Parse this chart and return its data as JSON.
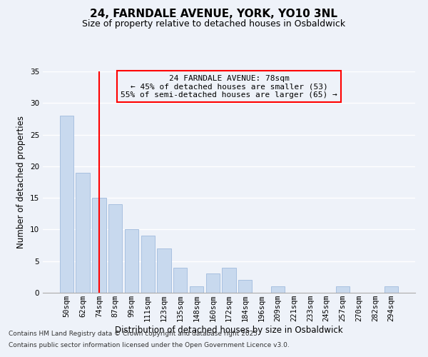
{
  "title": "24, FARNDALE AVENUE, YORK, YO10 3NL",
  "subtitle": "Size of property relative to detached houses in Osbaldwick",
  "xlabel": "Distribution of detached houses by size in Osbaldwick",
  "ylabel": "Number of detached properties",
  "bar_color": "#c8d9ee",
  "bar_edge_color": "#a8c0e0",
  "categories": [
    "50sqm",
    "62sqm",
    "74sqm",
    "87sqm",
    "99sqm",
    "111sqm",
    "123sqm",
    "135sqm",
    "148sqm",
    "160sqm",
    "172sqm",
    "184sqm",
    "196sqm",
    "209sqm",
    "221sqm",
    "233sqm",
    "245sqm",
    "257sqm",
    "270sqm",
    "282sqm",
    "294sqm"
  ],
  "values": [
    28,
    19,
    15,
    14,
    10,
    9,
    7,
    4,
    1,
    3,
    4,
    2,
    0,
    1,
    0,
    0,
    0,
    1,
    0,
    0,
    1
  ],
  "ylim": [
    0,
    35
  ],
  "yticks": [
    0,
    5,
    10,
    15,
    20,
    25,
    30,
    35
  ],
  "redline_x": 2.0,
  "annotation_text_line1": "24 FARNDALE AVENUE: 78sqm",
  "annotation_text_line2": "← 45% of detached houses are smaller (53)",
  "annotation_text_line3": "55% of semi-detached houses are larger (65) →",
  "footnote1": "Contains HM Land Registry data © Crown copyright and database right 2025.",
  "footnote2": "Contains public sector information licensed under the Open Government Licence v3.0.",
  "background_color": "#eef2f9",
  "grid_color": "#ffffff",
  "title_fontsize": 11,
  "subtitle_fontsize": 9,
  "axis_label_fontsize": 8.5,
  "tick_fontsize": 7.5,
  "annotation_fontsize": 8,
  "footnote_fontsize": 6.5
}
